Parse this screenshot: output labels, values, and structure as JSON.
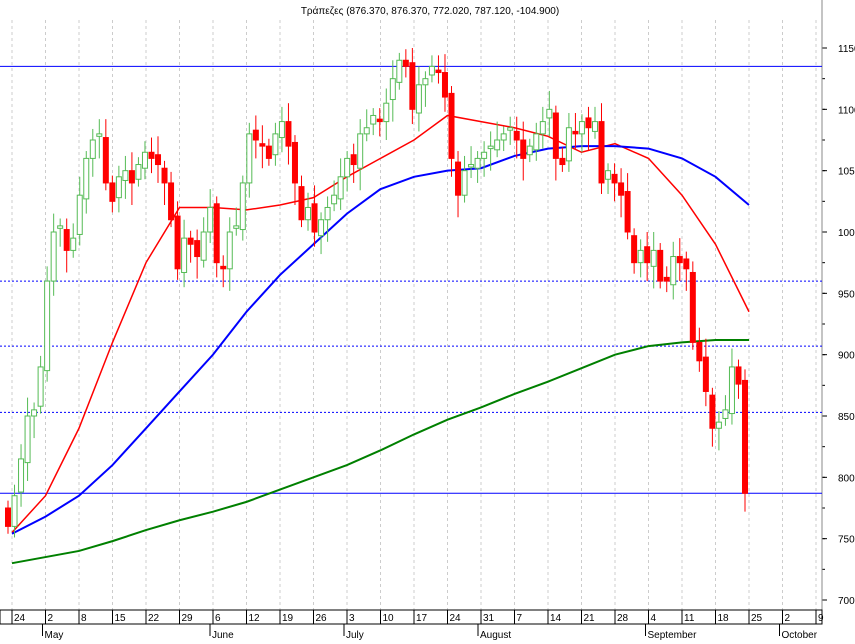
{
  "chart_data": {
    "type": "candlestick",
    "title": "Τράπεζες (876.370, 876.370, 772.020, 787.120, -104.900)",
    "ylim": [
      700,
      1160
    ],
    "yticks": [
      700,
      750,
      800,
      850,
      900,
      950,
      1000,
      1050,
      1100,
      1150
    ],
    "grid": true,
    "xtick_days": [
      "24",
      "2",
      "8",
      "15",
      "22",
      "29",
      "6",
      "12",
      "19",
      "26",
      "3",
      "10",
      "17",
      "24",
      "31",
      "7",
      "14",
      "21",
      "28",
      "4",
      "11",
      "18",
      "25",
      "2",
      "9"
    ],
    "months": [
      {
        "label": "May",
        "at": 1
      },
      {
        "label": "June",
        "at": 6
      },
      {
        "label": "July",
        "at": 10
      },
      {
        "label": "August",
        "at": 14
      },
      {
        "label": "September",
        "at": 19
      },
      {
        "label": "October",
        "at": 23
      }
    ],
    "closes": [
      760,
      785,
      815,
      850,
      855,
      890,
      960,
      1000,
      1005,
      985,
      995,
      1030,
      1060,
      1075,
      1080,
      1040,
      1025,
      1045,
      1050,
      1040,
      1055,
      1065,
      1060,
      1055,
      1040,
      1010,
      970,
      995,
      990,
      980,
      1000,
      1020,
      975,
      970,
      1000,
      1005,
      1040,
      1080,
      1075,
      1070,
      1060,
      1080,
      1090,
      1070,
      1040,
      1010,
      1020,
      1000,
      1010,
      1020,
      1030,
      1045,
      1060,
      1055,
      1080,
      1085,
      1095,
      1090,
      1105,
      1125,
      1140,
      1135,
      1100,
      1120,
      1125,
      1135,
      1130,
      1110,
      1060,
      1030,
      1050,
      1055,
      1060,
      1065,
      1070,
      1075,
      1080,
      1085,
      1075,
      1060,
      1070,
      1080,
      1090,
      1100,
      1060,
      1055,
      1085,
      1080,
      1090,
      1085,
      1090,
      1040,
      1050,
      1040,
      1030,
      1000,
      975,
      985,
      975,
      985,
      960,
      960,
      980,
      975,
      970,
      910,
      895,
      870,
      840,
      845,
      855,
      890,
      876,
      787
    ],
    "hlines": [
      {
        "value": 1135,
        "style": "solid"
      },
      {
        "value": 960,
        "style": "dotted"
      },
      {
        "value": 907,
        "style": "dotted"
      },
      {
        "value": 853,
        "style": "dotted"
      },
      {
        "value": 787,
        "style": "solid"
      }
    ],
    "moving_averages": [
      {
        "color": "#ff0000",
        "values": [
          755,
          785,
          840,
          910,
          975,
          1020,
          1020,
          1018,
          1022,
          1028,
          1045,
          1060,
          1075,
          1095,
          1090,
          1085,
          1078,
          1065,
          1072,
          1060,
          1030,
          990,
          935
        ]
      },
      {
        "color": "#0000ff",
        "values": [
          754,
          768,
          785,
          810,
          840,
          870,
          900,
          935,
          965,
          990,
          1015,
          1035,
          1045,
          1050,
          1052,
          1062,
          1068,
          1070,
          1070,
          1068,
          1060,
          1045,
          1022
        ]
      },
      {
        "color": "#008000",
        "values": [
          730,
          735,
          740,
          748,
          757,
          765,
          772,
          780,
          790,
          800,
          810,
          822,
          835,
          847,
          857,
          868,
          878,
          889,
          900,
          907,
          910,
          912,
          912
        ]
      }
    ],
    "colors": {
      "up": "#55bb55",
      "down": "#ff0000",
      "grid": "#cccccc"
    }
  }
}
